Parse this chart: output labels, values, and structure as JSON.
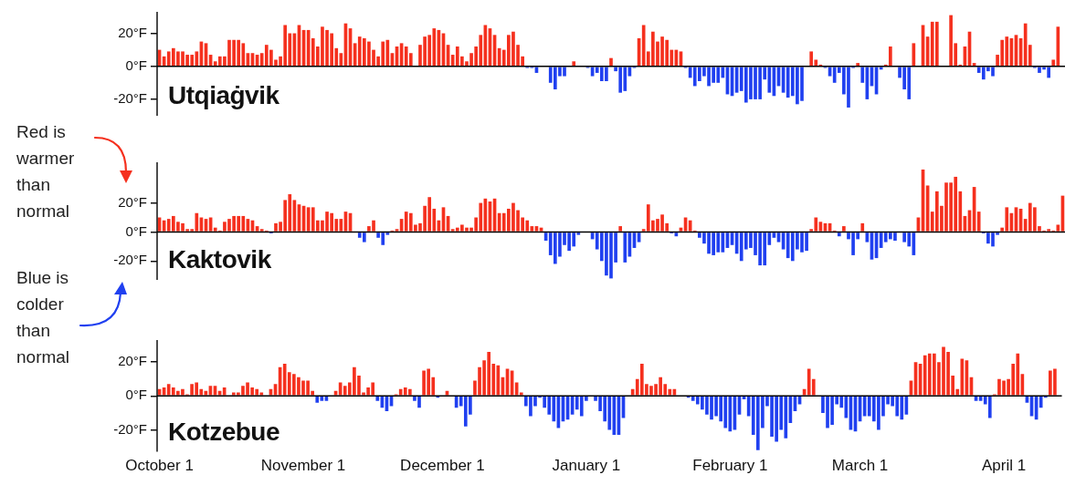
{
  "chart_data": [
    {
      "type": "bar",
      "title": "Utqiaġvik",
      "tick_labels": "y",
      "grid": false,
      "categories": [
        null,
        null,
        null,
        null,
        null,
        null,
        null,
        null,
        null,
        null,
        null,
        null,
        null,
        null,
        null,
        null,
        null,
        null,
        null,
        null,
        null,
        null,
        null,
        null,
        null,
        null,
        null,
        null,
        null,
        null,
        null,
        null,
        null,
        null,
        null,
        null,
        null,
        null,
        null,
        null,
        null,
        null,
        null,
        null,
        null,
        null,
        null,
        null,
        null,
        null,
        null,
        null,
        null,
        null,
        null,
        null,
        null,
        null,
        null,
        null,
        null,
        null,
        null,
        null,
        null,
        null,
        null,
        null,
        null,
        null,
        null,
        null,
        null,
        null,
        null,
        null,
        null,
        null,
        null,
        null,
        null,
        null,
        null,
        null,
        null,
        null,
        null,
        null,
        null,
        null,
        null,
        null,
        null,
        null,
        null,
        null,
        null,
        null,
        null,
        null,
        null,
        null,
        null,
        null,
        null,
        null,
        null,
        null,
        null,
        null,
        null,
        null,
        null,
        null,
        null,
        null,
        null,
        null,
        null,
        null,
        null,
        null,
        null,
        null,
        null,
        null,
        null,
        null,
        null,
        null,
        null,
        null,
        null,
        null,
        null,
        null,
        null,
        null,
        null,
        null,
        null,
        null,
        null,
        null,
        null,
        null,
        null,
        null,
        null,
        null,
        null,
        null,
        null,
        null,
        null,
        null,
        null,
        null,
        null,
        null,
        null,
        null,
        null,
        null,
        null,
        null,
        null,
        null,
        null,
        null,
        null,
        null,
        null,
        null,
        null,
        null,
        null,
        null,
        null,
        null,
        null,
        null,
        null,
        null,
        null,
        null,
        null,
        null,
        null,
        null,
        null,
        null,
        null,
        null,
        null
      ],
      "series": [
        {
          "color": "#f5301e",
          "values": [
            10,
            6,
            9,
            11,
            9,
            9,
            7,
            7,
            9,
            15,
            14,
            7,
            3,
            6,
            6,
            16,
            16,
            16,
            14,
            8,
            8,
            7,
            8,
            13,
            10,
            4,
            6,
            25,
            20,
            20,
            25,
            22,
            22,
            17,
            12,
            24,
            22,
            20,
            11,
            8,
            26,
            23,
            14,
            18,
            17,
            15,
            10,
            6,
            15,
            16,
            8,
            12,
            14,
            12,
            8,
            0,
            13,
            18,
            19,
            23,
            22,
            20,
            13,
            7,
            12,
            6,
            3,
            8,
            12,
            19,
            25,
            23,
            19,
            11,
            10,
            19,
            21,
            13,
            6,
            null,
            null,
            null,
            0,
            0,
            null,
            null,
            null,
            null,
            0,
            3,
            0,
            0,
            null,
            null,
            null,
            null,
            null,
            5,
            null,
            null,
            null,
            null,
            null,
            17,
            25,
            9,
            21,
            15,
            18,
            16,
            10,
            10,
            9,
            null,
            null,
            null,
            null,
            null,
            null,
            null,
            null,
            null,
            null,
            null,
            null,
            null,
            null,
            null,
            null,
            null,
            null,
            null,
            null,
            null,
            null,
            null,
            null,
            null,
            null,
            0,
            9,
            4,
            1,
            null,
            null,
            null,
            null,
            null,
            null,
            null,
            2,
            null,
            null,
            null,
            null,
            null,
            1,
            12,
            0,
            null,
            null,
            null,
            14,
            null,
            25,
            18,
            27,
            27,
            null,
            null,
            31,
            14,
            1,
            12,
            21,
            2,
            null,
            null,
            null,
            null,
            7,
            16,
            18,
            17,
            19,
            17,
            26,
            13,
            null,
            null,
            null,
            null,
            4,
            24,
            null
          ]
        },
        {
          "color": "#2040f0",
          "values": [
            null,
            null,
            null,
            null,
            null,
            null,
            null,
            null,
            null,
            null,
            null,
            null,
            null,
            null,
            null,
            null,
            null,
            null,
            null,
            null,
            null,
            null,
            null,
            null,
            null,
            null,
            null,
            null,
            null,
            null,
            null,
            null,
            null,
            null,
            null,
            null,
            null,
            null,
            null,
            null,
            null,
            null,
            null,
            null,
            null,
            null,
            null,
            null,
            null,
            null,
            null,
            null,
            null,
            null,
            null,
            null,
            null,
            null,
            null,
            null,
            null,
            null,
            null,
            null,
            null,
            null,
            null,
            null,
            null,
            null,
            null,
            null,
            null,
            null,
            null,
            null,
            null,
            null,
            null,
            -1,
            -1,
            -4,
            null,
            null,
            -10,
            -14,
            -6,
            -6,
            null,
            null,
            null,
            null,
            -1,
            -6,
            -4,
            -9,
            -9,
            null,
            -3,
            -16,
            -15,
            -6,
            -1,
            null,
            null,
            null,
            null,
            null,
            null,
            null,
            null,
            null,
            null,
            -1,
            -7,
            -12,
            -9,
            -6,
            -12,
            -10,
            -10,
            -7,
            -17,
            -18,
            -16,
            -15,
            -22,
            -20,
            -20,
            -20,
            -8,
            -16,
            -18,
            -12,
            -16,
            -19,
            -18,
            -23,
            -21,
            null,
            null,
            null,
            null,
            -1,
            -6,
            -10,
            -4,
            -17,
            -25,
            -1,
            null,
            -10,
            -20,
            -12,
            -17,
            -2,
            null,
            null,
            null,
            -7,
            -14,
            -20,
            null,
            null,
            null,
            null,
            null,
            null,
            null,
            null,
            null,
            null,
            null,
            null,
            null,
            null,
            -4,
            -8,
            -3,
            -6,
            null,
            null,
            null,
            null,
            null,
            null,
            null,
            null,
            -1,
            -4,
            -2,
            -7,
            null,
            null,
            null
          ]
        }
      ],
      "ylim": [
        -30,
        33
      ],
      "yticks": [
        {
          "value": 20,
          "label": "20°F"
        },
        {
          "value": 0,
          "label": "0°F"
        },
        {
          "value": -20,
          "label": "-20°F"
        }
      ],
      "ref_lines": [
        {
          "axis": "y",
          "value": 0,
          "color": "#000000"
        }
      ]
    },
    {
      "type": "bar",
      "title": "Kaktovik",
      "tick_labels": "y",
      "grid": false,
      "categories": [
        null,
        null,
        null,
        null,
        null,
        null,
        null,
        null,
        null,
        null,
        null,
        null,
        null,
        null,
        null,
        null,
        null,
        null,
        null,
        null,
        null,
        null,
        null,
        null,
        null,
        null,
        null,
        null,
        null,
        null,
        null,
        null,
        null,
        null,
        null,
        null,
        null,
        null,
        null,
        null,
        null,
        null,
        null,
        null,
        null,
        null,
        null,
        null,
        null,
        null,
        null,
        null,
        null,
        null,
        null,
        null,
        null,
        null,
        null,
        null,
        null,
        null,
        null,
        null,
        null,
        null,
        null,
        null,
        null,
        null,
        null,
        null,
        null,
        null,
        null,
        null,
        null,
        null,
        null,
        null,
        null,
        null,
        null,
        null,
        null,
        null,
        null,
        null,
        null,
        null,
        null,
        null,
        null,
        null,
        null,
        null,
        null,
        null,
        null,
        null,
        null,
        null,
        null,
        null,
        null,
        null,
        null,
        null,
        null,
        null,
        null,
        null,
        null,
        null,
        null,
        null,
        null,
        null,
        null,
        null,
        null,
        null,
        null,
        null,
        null,
        null,
        null,
        null,
        null,
        null,
        null,
        null,
        null,
        null,
        null,
        null,
        null,
        null,
        null,
        null,
        null,
        null,
        null,
        null,
        null,
        null,
        null,
        null,
        null,
        null,
        null,
        null,
        null,
        null,
        null,
        null,
        null,
        null,
        null,
        null,
        null,
        null,
        null,
        null,
        null,
        null,
        null,
        null,
        null,
        null,
        null,
        null,
        null,
        null,
        null,
        null,
        null,
        null,
        null,
        null,
        null,
        null,
        null,
        null,
        null,
        null,
        null,
        null,
        null,
        null,
        null,
        null,
        null,
        null,
        null
      ],
      "series": [
        {
          "color": "#f5301e",
          "values": [
            10,
            8,
            9,
            11,
            7,
            6,
            2,
            2,
            13,
            10,
            9,
            10,
            3,
            1,
            7,
            9,
            11,
            11,
            11,
            9,
            8,
            4,
            2,
            1,
            null,
            6,
            7,
            22,
            26,
            22,
            19,
            18,
            17,
            17,
            8,
            8,
            14,
            13,
            9,
            9,
            14,
            13,
            0,
            null,
            null,
            4,
            8,
            null,
            null,
            null,
            1,
            2,
            9,
            14,
            13,
            5,
            6,
            18,
            24,
            16,
            8,
            17,
            11,
            2,
            3,
            5,
            3,
            3,
            10,
            20,
            23,
            21,
            23,
            13,
            13,
            16,
            20,
            15,
            10,
            8,
            4,
            4,
            3,
            null,
            null,
            null,
            null,
            null,
            null,
            null,
            null,
            0,
            0,
            null,
            null,
            null,
            null,
            null,
            null,
            4,
            null,
            null,
            null,
            null,
            2,
            19,
            8,
            9,
            12,
            6,
            null,
            null,
            3,
            10,
            8,
            1,
            null,
            null,
            null,
            null,
            null,
            null,
            null,
            null,
            null,
            null,
            null,
            null,
            null,
            null,
            null,
            null,
            null,
            null,
            null,
            null,
            null,
            null,
            null,
            null,
            2,
            10,
            7,
            6,
            6,
            1,
            null,
            4,
            null,
            null,
            null,
            6,
            null,
            null,
            null,
            null,
            null,
            null,
            null,
            0,
            null,
            null,
            null,
            10,
            43,
            32,
            14,
            28,
            18,
            34,
            34,
            38,
            28,
            11,
            15,
            31,
            14,
            null,
            null,
            null,
            null,
            3,
            17,
            13,
            17,
            16,
            9,
            20,
            17,
            4,
            1,
            2,
            1,
            5,
            25
          ]
        },
        {
          "color": "#2040f0",
          "values": [
            null,
            null,
            null,
            null,
            null,
            null,
            null,
            null,
            null,
            null,
            null,
            null,
            null,
            null,
            null,
            null,
            null,
            null,
            null,
            null,
            null,
            null,
            null,
            null,
            -1,
            null,
            null,
            null,
            null,
            null,
            null,
            null,
            null,
            null,
            null,
            null,
            null,
            null,
            null,
            null,
            null,
            null,
            null,
            -4,
            -7,
            null,
            null,
            -4,
            -9,
            -2,
            null,
            null,
            null,
            null,
            null,
            null,
            null,
            null,
            null,
            null,
            null,
            null,
            null,
            null,
            null,
            null,
            null,
            null,
            null,
            null,
            null,
            null,
            null,
            null,
            null,
            null,
            null,
            null,
            null,
            null,
            null,
            null,
            null,
            -6,
            -16,
            -22,
            -17,
            -9,
            -13,
            -10,
            -2,
            null,
            null,
            -5,
            -12,
            -20,
            -30,
            -32,
            -21,
            null,
            -21,
            -17,
            -11,
            -7,
            null,
            null,
            null,
            null,
            null,
            null,
            -1,
            -3,
            null,
            null,
            null,
            null,
            -4,
            -8,
            -15,
            -16,
            -14,
            -14,
            -11,
            -9,
            -15,
            -20,
            -12,
            -11,
            -16,
            -23,
            -23,
            -9,
            -4,
            -7,
            -12,
            -18,
            -20,
            -12,
            -14,
            -13,
            null,
            null,
            null,
            null,
            null,
            null,
            -3,
            null,
            -5,
            -16,
            -5,
            null,
            -7,
            -19,
            -18,
            -11,
            -7,
            -5,
            -6,
            null,
            -7,
            -10,
            -16,
            null,
            null,
            null,
            null,
            null,
            null,
            null,
            null,
            null,
            null,
            null,
            null,
            null,
            null,
            -1,
            -8,
            -10,
            -2,
            null,
            null,
            null,
            null,
            null,
            null,
            null,
            null,
            null,
            null,
            null,
            null,
            null,
            null
          ]
        }
      ],
      "ylim": [
        -33,
        48
      ],
      "yticks": [
        {
          "value": 20,
          "label": "20°F"
        },
        {
          "value": 0,
          "label": "0°F"
        },
        {
          "value": -20,
          "label": "-20°F"
        }
      ],
      "ref_lines": [
        {
          "axis": "y",
          "value": 0,
          "color": "#000000"
        }
      ],
      "annotations": [
        "Red is warmer than normal",
        "Blue is colder than normal"
      ]
    },
    {
      "type": "bar",
      "title": "Kotzebue",
      "grid": false,
      "categories": [
        "October 1",
        null,
        null,
        null,
        null,
        null,
        null,
        null,
        null,
        null,
        null,
        null,
        null,
        null,
        null,
        null,
        null,
        null,
        null,
        null,
        null,
        null,
        null,
        null,
        null,
        null,
        null,
        null,
        null,
        null,
        null,
        "November 1",
        null,
        null,
        null,
        null,
        null,
        null,
        null,
        null,
        null,
        null,
        null,
        null,
        null,
        null,
        null,
        null,
        null,
        null,
        null,
        null,
        null,
        null,
        null,
        null,
        null,
        null,
        null,
        null,
        null,
        "December 1",
        null,
        null,
        null,
        null,
        null,
        null,
        null,
        null,
        null,
        null,
        null,
        null,
        null,
        null,
        null,
        null,
        null,
        null,
        null,
        null,
        null,
        null,
        null,
        null,
        null,
        null,
        null,
        null,
        null,
        null,
        "January 1",
        null,
        null,
        null,
        null,
        null,
        null,
        null,
        null,
        null,
        null,
        null,
        null,
        null,
        null,
        null,
        null,
        null,
        null,
        null,
        null,
        null,
        null,
        null,
        null,
        null,
        null,
        null,
        null,
        null,
        null,
        "February 1",
        null,
        null,
        null,
        null,
        null,
        null,
        null,
        null,
        null,
        null,
        null,
        null,
        null,
        null,
        null,
        null,
        null,
        null,
        null,
        null,
        null,
        null,
        null,
        null,
        null,
        null,
        null,
        "March 1",
        null,
        null,
        null,
        null,
        null,
        null,
        null,
        null,
        null,
        null,
        null,
        null,
        null,
        null,
        null,
        null,
        null,
        null,
        null,
        null,
        null,
        null,
        null,
        null,
        null,
        null,
        null,
        null,
        null,
        null,
        "April 1",
        null,
        null,
        null,
        null,
        null,
        null,
        null,
        null,
        null,
        null,
        null,
        null
      ],
      "series": [
        {
          "color": "#f5301e",
          "values": [
            4,
            5,
            7,
            5,
            3,
            4,
            1,
            7,
            8,
            4,
            3,
            6,
            6,
            3,
            5,
            0,
            2,
            2,
            6,
            8,
            5,
            4,
            2,
            0,
            4,
            7,
            17,
            19,
            14,
            13,
            11,
            9,
            9,
            3,
            null,
            null,
            null,
            0,
            3,
            8,
            6,
            8,
            17,
            12,
            2,
            5,
            8,
            null,
            null,
            null,
            null,
            1,
            4,
            5,
            4,
            null,
            null,
            15,
            16,
            11,
            null,
            0,
            3,
            0,
            null,
            null,
            null,
            null,
            9,
            17,
            21,
            26,
            19,
            18,
            11,
            16,
            15,
            8,
            2,
            null,
            null,
            null,
            null,
            null,
            null,
            null,
            null,
            null,
            null,
            null,
            null,
            null,
            null,
            0,
            null,
            null,
            null,
            null,
            null,
            null,
            null,
            0,
            4,
            10,
            19,
            7,
            6,
            7,
            11,
            7,
            4,
            4,
            0,
            0,
            null,
            null,
            null,
            null,
            null,
            null,
            null,
            null,
            null,
            null,
            null,
            null,
            null,
            null,
            null,
            null,
            null,
            null,
            null,
            null,
            null,
            null,
            null,
            null,
            null,
            4,
            16,
            10,
            0,
            null,
            null,
            null,
            null,
            null,
            null,
            null,
            null,
            null,
            null,
            null,
            null,
            null,
            null,
            null,
            null,
            null,
            null,
            null,
            9,
            20,
            19,
            24,
            25,
            25,
            20,
            29,
            26,
            12,
            4,
            22,
            21,
            11,
            null,
            null,
            null,
            null,
            1,
            10,
            9,
            10,
            19,
            25,
            13,
            null,
            null,
            null,
            null,
            null,
            15,
            16,
            null
          ]
        },
        {
          "color": "#2040f0",
          "values": [
            null,
            null,
            null,
            null,
            null,
            null,
            null,
            null,
            null,
            null,
            null,
            null,
            null,
            null,
            null,
            null,
            null,
            null,
            null,
            null,
            null,
            null,
            null,
            null,
            null,
            null,
            null,
            null,
            null,
            null,
            null,
            null,
            null,
            null,
            -4,
            -3,
            -3,
            null,
            null,
            null,
            null,
            null,
            null,
            null,
            null,
            null,
            null,
            -3,
            -7,
            -9,
            -6,
            null,
            null,
            null,
            null,
            -3,
            -7,
            null,
            null,
            null,
            -1,
            null,
            null,
            null,
            -7,
            -6,
            -18,
            -11,
            null,
            null,
            null,
            null,
            null,
            null,
            null,
            null,
            null,
            null,
            null,
            -6,
            -12,
            -6,
            -1,
            -7,
            -11,
            -15,
            -19,
            -15,
            -14,
            -11,
            -8,
            -12,
            -3,
            null,
            -3,
            -9,
            -15,
            -20,
            -23,
            -23,
            -13,
            null,
            null,
            null,
            null,
            null,
            null,
            null,
            null,
            null,
            null,
            null,
            null,
            null,
            -1,
            -3,
            -5,
            -8,
            -11,
            -14,
            -12,
            -15,
            -19,
            -21,
            -20,
            -11,
            -2,
            -12,
            -23,
            -32,
            -19,
            -6,
            -24,
            -27,
            -20,
            -25,
            -16,
            -9,
            -5,
            null,
            null,
            null,
            null,
            -10,
            -19,
            -17,
            -5,
            -7,
            -13,
            -20,
            -21,
            -15,
            -12,
            -12,
            -15,
            -20,
            -12,
            -5,
            -6,
            -12,
            -14,
            -11,
            null,
            null,
            null,
            null,
            null,
            null,
            null,
            null,
            null,
            null,
            null,
            null,
            null,
            null,
            -3,
            -3,
            -5,
            -13,
            null,
            null,
            null,
            null,
            null,
            null,
            null,
            -4,
            -12,
            -14,
            -7,
            -1,
            null,
            null,
            null
          ]
        }
      ],
      "ylim": [
        -33,
        33
      ],
      "yticks": [
        {
          "value": 20,
          "label": "20°F"
        },
        {
          "value": 0,
          "label": "0°F"
        },
        {
          "value": -20,
          "label": "-20°F"
        }
      ],
      "ref_lines": [
        {
          "axis": "y",
          "value": 0,
          "color": "#000000"
        }
      ]
    }
  ]
}
